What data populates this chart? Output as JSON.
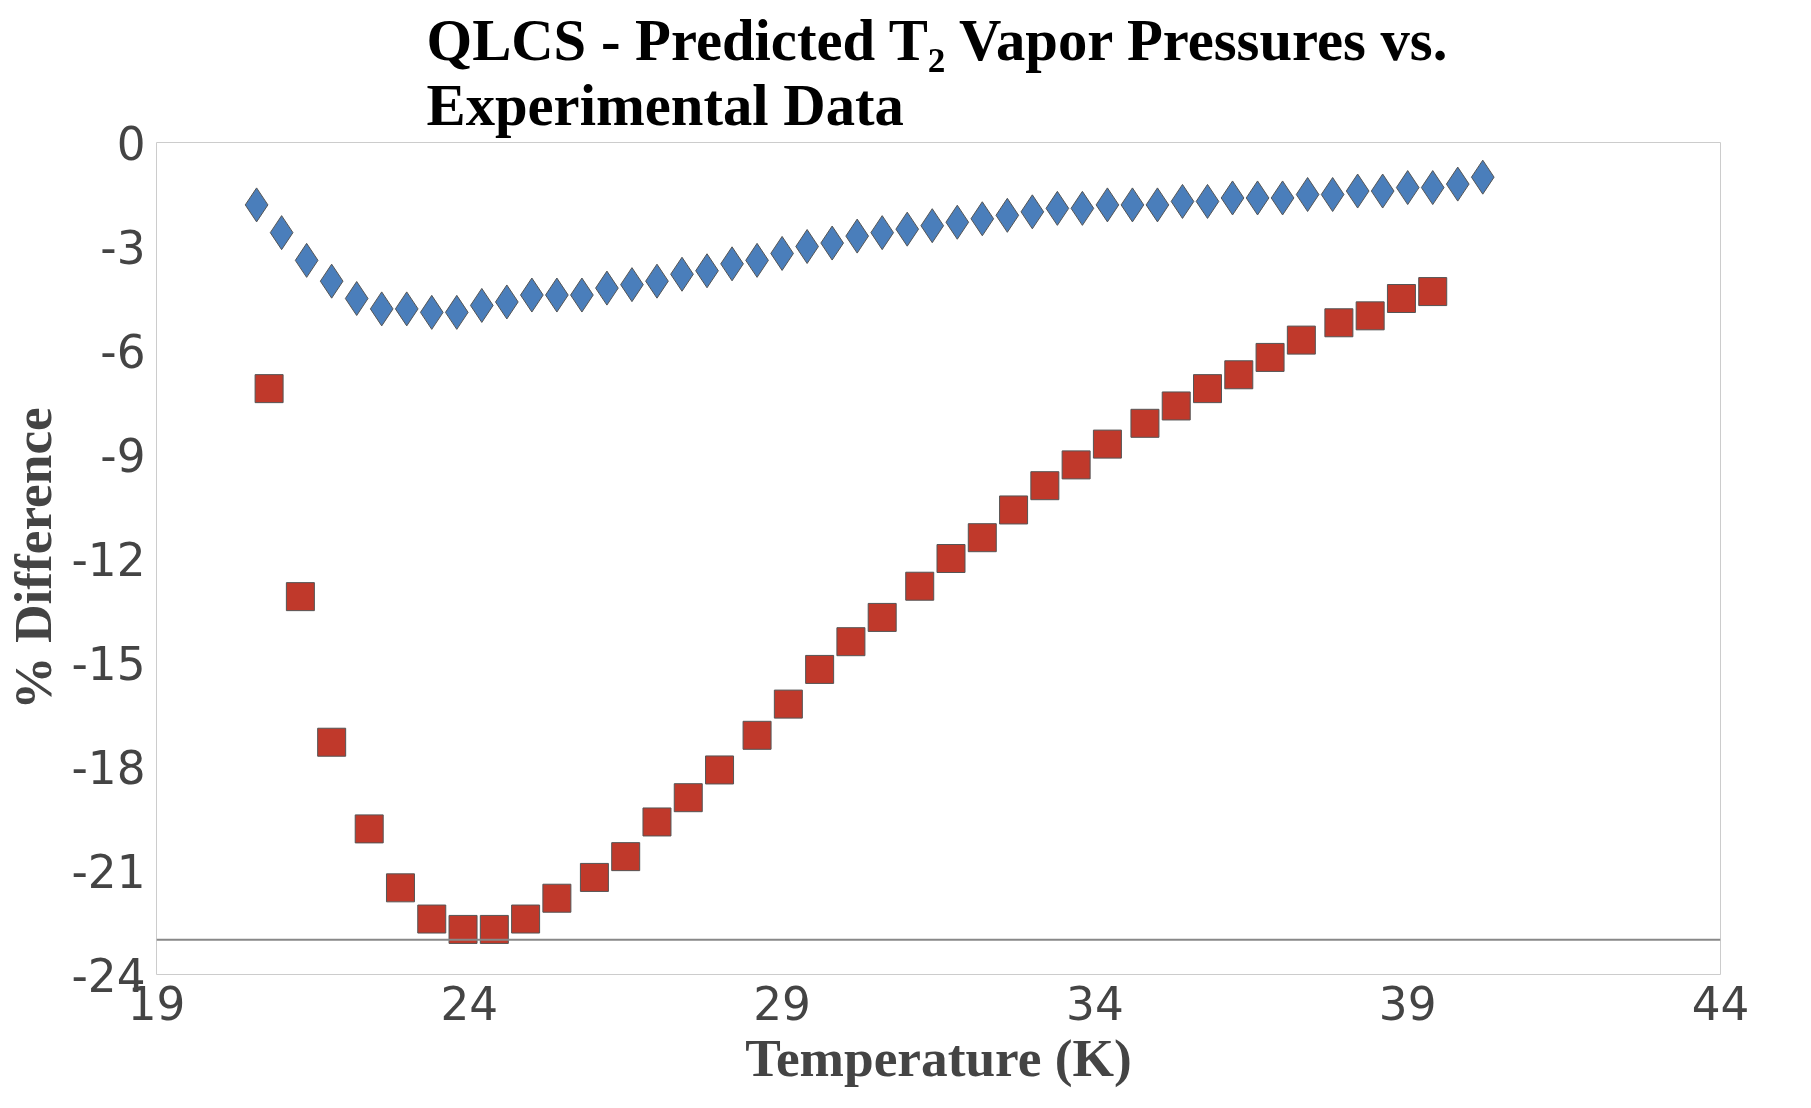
{
  "chart_data": {
    "type": "scatter",
    "title": "QLCS - Predicted T₂ Vapor Pressures vs. Experimental Data",
    "xlabel": "Temperature (K)",
    "ylabel": "% Difference",
    "series": [
      {
        "color": "#4a7ebb",
        "marker": "diamond",
        "x": [
          20.6,
          21.0,
          21.4,
          21.8,
          22.2,
          22.6,
          23.0,
          23.4,
          23.8,
          24.2,
          24.6,
          25.0,
          25.4,
          25.8,
          26.2,
          26.6,
          27.0,
          27.4,
          27.8,
          28.2,
          28.6,
          29.0,
          29.4,
          29.8,
          30.2,
          30.6,
          31.0,
          31.4,
          31.8,
          32.2,
          32.6,
          33.0,
          33.4,
          33.8,
          34.2,
          34.6,
          35.0,
          35.4,
          35.8,
          36.2,
          36.6,
          37.0,
          37.4,
          37.8,
          38.2,
          38.6,
          39.0,
          39.4,
          39.8,
          40.2
        ],
        "values": [
          -1.8,
          -2.6,
          -3.4,
          -4.0,
          -4.5,
          -4.8,
          -4.8,
          -4.9,
          -4.9,
          -4.7,
          -4.6,
          -4.4,
          -4.4,
          -4.4,
          -4.2,
          -4.1,
          -4.0,
          -3.8,
          -3.7,
          -3.5,
          -3.4,
          -3.2,
          -3.0,
          -2.9,
          -2.7,
          -2.6,
          -2.5,
          -2.4,
          -2.3,
          -2.2,
          -2.1,
          -2.0,
          -1.9,
          -1.9,
          -1.8,
          -1.8,
          -1.8,
          -1.7,
          -1.7,
          -1.6,
          -1.6,
          -1.6,
          -1.5,
          -1.5,
          -1.4,
          -1.4,
          -1.3,
          -1.3,
          -1.2,
          -1.0
        ]
      },
      {
        "color": "#c0392b",
        "marker": "square",
        "x": [
          20.8,
          21.3,
          21.8,
          22.4,
          22.9,
          23.4,
          23.9,
          24.4,
          24.9,
          25.4,
          26.0,
          26.5,
          27.0,
          27.5,
          28.0,
          28.6,
          29.1,
          29.6,
          30.1,
          30.6,
          31.2,
          31.7,
          32.2,
          32.7,
          33.2,
          33.7,
          34.2,
          34.8,
          35.3,
          35.8,
          36.3,
          36.8,
          37.3,
          37.9,
          38.4,
          38.9,
          39.4
        ],
        "values": [
          -7.1,
          -13.1,
          -17.3,
          -19.8,
          -21.5,
          -22.4,
          -22.7,
          -22.7,
          -22.4,
          -21.8,
          -21.2,
          -20.6,
          -19.6,
          -18.9,
          -18.1,
          -17.1,
          -16.2,
          -15.2,
          -14.4,
          -13.7,
          -12.8,
          -12.0,
          -11.4,
          -10.6,
          -9.9,
          -9.3,
          -8.7,
          -8.1,
          -7.6,
          -7.1,
          -6.7,
          -6.2,
          -5.7,
          -5.2,
          -5.0,
          -4.5,
          -4.3
        ]
      }
    ],
    "xlim": [
      19,
      44
    ],
    "xticks": [
      19,
      24,
      29,
      34,
      39,
      44
    ],
    "ylim": [
      -24,
      0
    ],
    "yticks": [
      0,
      -3,
      -6,
      -9,
      -12,
      -15,
      -18,
      -21,
      -24
    ],
    "ref_lines": [
      {
        "axis": "y",
        "value": -23,
        "color": "#888888"
      }
    ],
    "grid": false
  }
}
